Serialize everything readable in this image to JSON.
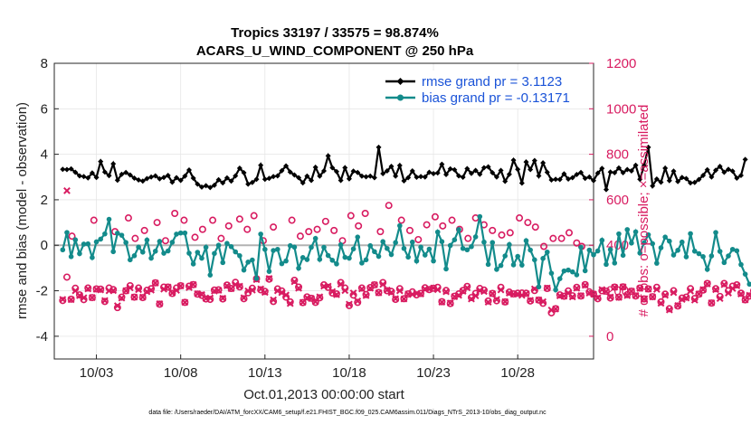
{
  "chart_data": {
    "type": "line",
    "title": "Tropics 33197 / 33575 = 98.874%",
    "subtitle": "ACARS_U_WIND_COMPONENT @ 250 hPa",
    "xlabel": "Oct.01,2013 00:00:00 start",
    "ylabel": "rmse and bias (model - observation)",
    "y2label": "# of obs: o=possible; ×=assimilated",
    "footer": "data file: /Users/raeder/DAI/ATM_forcXX/CAM6_setup/f.e21.FHIST_BGC.f09_025.CAM6assim.011/Diags_NTrS_2013-10/obs_diag_output.nc",
    "xlim": [
      0.5,
      32.5
    ],
    "ylim": [
      -5,
      8
    ],
    "y2lim": [
      -100,
      1200
    ],
    "x_ticks": [
      {
        "value": 3,
        "label": "10/03"
      },
      {
        "value": 8,
        "label": "10/08"
      },
      {
        "value": 13,
        "label": "10/13"
      },
      {
        "value": 18,
        "label": "10/18"
      },
      {
        "value": 23,
        "label": "10/23"
      },
      {
        "value": 28,
        "label": "10/28"
      }
    ],
    "y_ticks": [
      {
        "value": 8,
        "label": "8"
      },
      {
        "value": 6,
        "label": "6"
      },
      {
        "value": 4,
        "label": "4"
      },
      {
        "value": 2,
        "label": "2"
      },
      {
        "value": 0,
        "label": "0"
      },
      {
        "value": -2,
        "label": "-2"
      },
      {
        "value": -4,
        "label": "-4"
      }
    ],
    "y2_ticks": [
      {
        "value": 1200,
        "label": "1200"
      },
      {
        "value": 1000,
        "label": "1000"
      },
      {
        "value": 800,
        "label": "800"
      },
      {
        "value": 600,
        "label": "600"
      },
      {
        "value": 400,
        "label": "400"
      },
      {
        "value": 200,
        "label": "200"
      },
      {
        "value": 0,
        "label": "0"
      }
    ],
    "grid": true,
    "legend_position": "top-right",
    "series": [
      {
        "name": "rmse grand pr = 3.1123",
        "color": "#000000",
        "marker": "diamond",
        "axis": "left",
        "x_start": 1.0,
        "x_step": 0.25,
        "values": [
          3.34,
          3.33,
          3.36,
          3.21,
          3.05,
          3.02,
          2.96,
          3.18,
          2.98,
          3.68,
          3.22,
          3.06,
          3.58,
          2.86,
          3.12,
          3.2,
          3.09,
          2.95,
          2.87,
          2.82,
          2.93,
          3.0,
          3.05,
          2.92,
          2.98,
          3.07,
          2.77,
          2.97,
          2.85,
          3.04,
          3.31,
          2.95,
          2.69,
          2.56,
          2.62,
          2.54,
          2.64,
          2.88,
          2.74,
          2.96,
          2.82,
          3.05,
          3.39,
          3.19,
          2.69,
          2.76,
          2.9,
          3.52,
          2.9,
          2.94,
          3.02,
          3.05,
          3.28,
          3.49,
          3.22,
          3.09,
          2.97,
          2.74,
          3.04,
          2.85,
          3.43,
          3.04,
          3.27,
          3.93,
          3.41,
          3.24,
          2.85,
          3.41,
          2.92,
          3.26,
          3.2,
          3.04,
          3.01,
          3.04,
          2.97,
          4.31,
          3.15,
          3.27,
          3.47,
          3.04,
          3.51,
          2.83,
          2.97,
          3.27,
          2.99,
          3.02,
          3.0,
          3.21,
          3.15,
          3.18,
          3.56,
          3.11,
          3.36,
          3.32,
          3.05,
          2.99,
          3.37,
          3.16,
          3.29,
          3.12,
          3.41,
          3.45,
          3.19,
          3.0,
          3.29,
          2.81,
          3.12,
          3.74,
          3.34,
          2.73,
          3.66,
          3.33,
          3.72,
          3.05,
          3.62,
          3.21,
          2.87,
          2.9,
          2.89,
          3.14,
          2.91,
          2.97,
          3.11,
          3.2,
          2.94,
          3.0,
          2.84,
          3.17,
          3.38,
          2.45,
          3.22,
          3.19,
          3.4,
          3.19,
          3.33,
          3.27,
          3.52,
          2.9,
          3.51,
          4.31,
          2.61,
          2.91,
          2.77,
          3.39,
          2.84,
          3.26,
          2.8,
          2.98,
          2.93,
          2.74,
          2.76,
          2.89,
          3.07,
          3.32,
          3.0,
          3.3,
          3.47,
          3.21,
          3.34,
          3.26,
          2.95,
          3.07,
          3.77
        ]
      },
      {
        "name": "bias grand pr = -0.13171",
        "color": "#138b8b",
        "marker": "circle",
        "axis": "left",
        "x_start": 1.0,
        "x_step": 0.25,
        "values": [
          -0.2,
          0.56,
          -0.5,
          0.24,
          -0.37,
          0.05,
          0.06,
          -0.54,
          0.15,
          0.27,
          0.5,
          1.14,
          -0.28,
          0.53,
          0.44,
          0.12,
          -0.64,
          -0.46,
          -0.08,
          -0.3,
          0.23,
          -0.57,
          -0.26,
          0.17,
          -0.35,
          -0.25,
          0.13,
          0.49,
          0.54,
          0.54,
          -0.35,
          -0.82,
          -0.31,
          -0.57,
          -0.09,
          -1.31,
          -0.36,
          0.0,
          -0.76,
          0.08,
          -0.06,
          -0.29,
          -0.46,
          -1.09,
          -0.74,
          -0.65,
          -1.46,
          0.49,
          -0.18,
          -1.15,
          -0.23,
          -0.18,
          -0.81,
          -0.69,
          -0.02,
          -0.08,
          -1.01,
          -0.54,
          -0.63,
          -0.09,
          0.3,
          -0.62,
          -0.09,
          -0.45,
          -0.66,
          -0.82,
          0.02,
          -0.53,
          -0.57,
          -0.16,
          0.36,
          -0.78,
          -0.64,
          -0.02,
          -0.28,
          -0.49,
          0.16,
          -0.14,
          -0.41,
          0.12,
          0.86,
          -0.14,
          -0.52,
          0.14,
          -0.69,
          -0.08,
          -0.43,
          -0.17,
          -0.69,
          0.58,
          0.16,
          -1.04,
          -0.01,
          0.24,
          0.69,
          -0.14,
          -0.2,
          -0.06,
          0.37,
          1.26,
          0.14,
          -0.84,
          0.12,
          -1.06,
          -0.89,
          -0.47,
          0.03,
          -0.86,
          -0.49,
          -0.87,
          0.2,
          -0.21,
          -0.64,
          -1.83,
          -0.58,
          -0.3,
          -1.23,
          -1.96,
          -1.47,
          -1.13,
          -1.09,
          -1.17,
          -1.3,
          -0.09,
          -1.12,
          -0.21,
          -0.42,
          -0.25,
          0.22,
          -0.84,
          -0.19,
          -0.78,
          0.5,
          -0.44,
          0.69,
          0.1,
          0.59,
          -0.34,
          0.11,
          0.46,
          0.07,
          -0.79,
          -0.11,
          0.36,
          0.18,
          -0.43,
          -0.22,
          0.14,
          -0.51,
          0.51,
          -0.26,
          -0.37,
          -0.5,
          -1.06,
          -0.47,
          0.56,
          -0.27,
          -0.76,
          -0.47,
          -0.18,
          -0.24,
          -0.85,
          -1.27,
          -1.71
        ]
      },
      {
        "name": "# of obs possible",
        "color": "#d81b60",
        "marker": "circle-open",
        "axis": "right",
        "x_start": 1.0,
        "x_step": 0.25,
        "values": [
          157,
          260,
          163,
          211,
          182,
          161,
          212,
          170,
          208,
          207,
          153,
          212,
          205,
          126,
          172,
          200,
          222,
          172,
          212,
          170,
          202,
          209,
          235,
          141,
          216,
          216,
          188,
          212,
          222,
          149,
          220,
          227,
          185,
          180,
          164,
          162,
          203,
          204,
          164,
          225,
          210,
          237,
          217,
          165,
          191,
          211,
          253,
          204,
          197,
          251,
          153,
          208,
          199,
          172,
          151,
          246,
          216,
          148,
          173,
          167,
          149,
          169,
          226,
          215,
          190,
          186,
          236,
          212,
          135,
          181,
          149,
          212,
          183,
          214,
          226,
          192,
          236,
          200,
          197,
          162,
          209,
          165,
          186,
          195,
          182,
          188,
          213,
          205,
          211,
          215,
          152,
          201,
          144,
          176,
          186,
          201,
          219,
          170,
          188,
          210,
          203,
          155,
          188,
          156,
          215,
          151,
          194,
          186,
          189,
          190,
          189,
          155,
          201,
          159,
          145,
          210,
          103,
          121,
          182,
          176,
          199,
          178,
          215,
          177,
          227,
          195,
          185,
          165,
          200,
          198,
          168,
          216,
          172,
          217,
          183,
          198,
          177,
          212,
          164,
          208,
          174,
          215,
          151,
          185,
          121,
          200,
          133,
          168,
          172,
          209,
          166,
          185,
          203,
          232,
          146,
          209,
          175,
          232,
          200,
          220,
          226,
          189,
          160,
          177,
          200
        ]
      },
      {
        "name": "# of obs assimilated",
        "color": "#d81b60",
        "marker": "cross",
        "axis": "right",
        "x_start": 1.0,
        "x_step": 0.25,
        "values": [
          162,
          640,
          161,
          200,
          179,
          169,
          208,
          170,
          206,
          204,
          157,
          200,
          201,
          134,
          168,
          200,
          213,
          172,
          205,
          172,
          196,
          203,
          234,
          143,
          207,
          216,
          190,
          202,
          221,
          149,
          214,
          227,
          187,
          183,
          166,
          168,
          199,
          202,
          167,
          222,
          209,
          227,
          220,
          169,
          199,
          203,
          249,
          208,
          193,
          254,
          160,
          200,
          192,
          181,
          144,
          240,
          211,
          149,
          169,
          166,
          152,
          173,
          220,
          220,
          196,
          183,
          229,
          201,
          141,
          190,
          155,
          208,
          179,
          211,
          226,
          191,
          228,
          203,
          192,
          165,
          200,
          164,
          185,
          184,
          188,
          186,
          208,
          207,
          212,
          205,
          150,
          196,
          146,
          174,
          180,
          198,
          213,
          164,
          178,
          201,
          197,
          150,
          187,
          162,
          204,
          152,
          190,
          185,
          186,
          180,
          187,
          158,
          208,
          160,
          152,
          212,
          115,
          120,
          178,
          176,
          190,
          173,
          211,
          178,
          224,
          190,
          185,
          169,
          205,
          197,
          172,
          215,
          171,
          217,
          179,
          198,
          179,
          210,
          163,
          207,
          173,
          206,
          145,
          180,
          116,
          192,
          135,
          162,
          168,
          199,
          159,
          186,
          205,
          230,
          147,
          205,
          166,
          227,
          190,
          210,
          222,
          186,
          160,
          180,
          193
        ]
      }
    ],
    "extra_markers": [
      {
        "series": "# of obs possible",
        "points": [
          [
            1.55,
            440
          ],
          [
            2.85,
            510
          ],
          [
            4.1,
            460
          ],
          [
            4.9,
            520
          ],
          [
            5.3,
            430
          ],
          [
            5.85,
            465
          ],
          [
            6.6,
            500
          ],
          [
            7.1,
            420
          ],
          [
            7.65,
            540
          ],
          [
            8.2,
            510
          ],
          [
            8.85,
            435
          ],
          [
            9.3,
            470
          ],
          [
            9.9,
            510
          ],
          [
            10.4,
            430
          ],
          [
            10.85,
            485
          ],
          [
            11.5,
            515
          ],
          [
            11.95,
            470
          ],
          [
            12.35,
            530
          ],
          [
            12.9,
            420
          ],
          [
            13.5,
            480
          ],
          [
            14.6,
            510
          ],
          [
            15.1,
            440
          ],
          [
            15.6,
            460
          ],
          [
            16.1,
            470
          ],
          [
            16.6,
            505
          ],
          [
            17.1,
            465
          ],
          [
            17.6,
            420
          ],
          [
            18.1,
            530
          ],
          [
            18.55,
            485
          ],
          [
            18.95,
            540
          ],
          [
            19.85,
            460
          ],
          [
            20.35,
            575
          ],
          [
            21.1,
            510
          ],
          [
            21.6,
            465
          ],
          [
            22.1,
            425
          ],
          [
            22.6,
            490
          ],
          [
            23.1,
            525
          ],
          [
            23.55,
            485
          ],
          [
            24.1,
            510
          ],
          [
            24.55,
            470
          ],
          [
            25.05,
            430
          ],
          [
            25.5,
            520
          ],
          [
            26.0,
            490
          ],
          [
            26.5,
            465
          ],
          [
            27.05,
            445
          ],
          [
            27.55,
            455
          ],
          [
            28.1,
            520
          ],
          [
            28.6,
            500
          ],
          [
            29.05,
            480
          ],
          [
            29.55,
            395
          ],
          [
            30.1,
            430
          ],
          [
            30.6,
            430
          ],
          [
            31.05,
            455
          ],
          [
            31.5,
            410
          ],
          [
            31.8,
            395
          ]
        ]
      }
    ]
  }
}
